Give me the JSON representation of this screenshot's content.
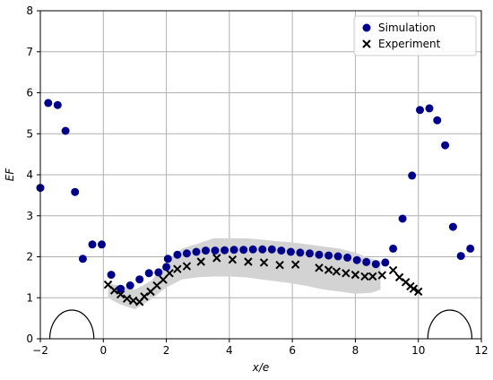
{
  "chart_data": {
    "type": "scatter",
    "xlabel": "x/e",
    "ylabel": "EF",
    "xlim": [
      -2,
      12
    ],
    "ylim": [
      0,
      8
    ],
    "xticks": [
      -2,
      0,
      2,
      4,
      6,
      8,
      10,
      12
    ],
    "yticks": [
      0,
      1,
      2,
      3,
      4,
      5,
      6,
      7,
      8
    ],
    "grid": true,
    "legend_position": "top-right",
    "colors": {
      "simulation": "#00008b",
      "experiment": "#000000",
      "band": "#d3d3d3",
      "grid": "#b0b0b0"
    },
    "series": [
      {
        "name": "Simulation",
        "marker": "circle",
        "points": [
          [
            -2.0,
            3.68
          ],
          [
            -1.75,
            5.75
          ],
          [
            -1.45,
            5.7
          ],
          [
            -1.2,
            5.07
          ],
          [
            -0.9,
            3.58
          ],
          [
            -0.65,
            1.95
          ],
          [
            -0.35,
            2.3
          ],
          [
            -0.05,
            2.3
          ],
          [
            0.25,
            1.56
          ],
          [
            0.55,
            1.22
          ],
          [
            0.85,
            1.3
          ],
          [
            1.15,
            1.45
          ],
          [
            1.45,
            1.6
          ],
          [
            1.75,
            1.62
          ],
          [
            2.0,
            1.75
          ],
          [
            2.05,
            1.95
          ],
          [
            2.35,
            2.05
          ],
          [
            2.65,
            2.08
          ],
          [
            2.95,
            2.12
          ],
          [
            3.25,
            2.15
          ],
          [
            3.55,
            2.15
          ],
          [
            3.85,
            2.16
          ],
          [
            4.15,
            2.17
          ],
          [
            4.45,
            2.17
          ],
          [
            4.75,
            2.18
          ],
          [
            5.05,
            2.18
          ],
          [
            5.35,
            2.18
          ],
          [
            5.65,
            2.15
          ],
          [
            5.95,
            2.12
          ],
          [
            6.25,
            2.1
          ],
          [
            6.55,
            2.08
          ],
          [
            6.85,
            2.05
          ],
          [
            7.15,
            2.03
          ],
          [
            7.45,
            2.01
          ],
          [
            7.75,
            1.98
          ],
          [
            8.05,
            1.92
          ],
          [
            8.35,
            1.87
          ],
          [
            8.65,
            1.82
          ],
          [
            8.95,
            1.86
          ],
          [
            9.2,
            2.2
          ],
          [
            9.5,
            2.93
          ],
          [
            9.8,
            3.98
          ],
          [
            10.05,
            5.58
          ],
          [
            10.35,
            5.62
          ],
          [
            10.6,
            5.33
          ],
          [
            10.85,
            4.72
          ],
          [
            11.1,
            2.73
          ],
          [
            11.35,
            2.02
          ],
          [
            11.65,
            2.2
          ]
        ]
      },
      {
        "name": "Experiment",
        "marker": "x",
        "points": [
          [
            0.15,
            1.32
          ],
          [
            0.35,
            1.18
          ],
          [
            0.55,
            1.08
          ],
          [
            0.75,
            0.98
          ],
          [
            0.95,
            0.93
          ],
          [
            1.15,
            0.9
          ],
          [
            1.3,
            1.03
          ],
          [
            1.5,
            1.15
          ],
          [
            1.7,
            1.3
          ],
          [
            1.9,
            1.44
          ],
          [
            2.1,
            1.6
          ],
          [
            2.35,
            1.7
          ],
          [
            2.65,
            1.77
          ],
          [
            3.1,
            1.88
          ],
          [
            3.6,
            1.97
          ],
          [
            4.1,
            1.93
          ],
          [
            4.6,
            1.88
          ],
          [
            5.1,
            1.86
          ],
          [
            5.6,
            1.8
          ],
          [
            6.1,
            1.81
          ],
          [
            6.85,
            1.73
          ],
          [
            7.15,
            1.68
          ],
          [
            7.4,
            1.64
          ],
          [
            7.7,
            1.6
          ],
          [
            8.0,
            1.56
          ],
          [
            8.3,
            1.52
          ],
          [
            8.55,
            1.52
          ],
          [
            8.85,
            1.55
          ],
          [
            9.2,
            1.67
          ],
          [
            9.4,
            1.5
          ],
          [
            9.6,
            1.38
          ],
          [
            9.75,
            1.28
          ],
          [
            9.85,
            1.22
          ],
          [
            10.0,
            1.15
          ]
        ]
      }
    ],
    "band": {
      "x": [
        0.15,
        0.5,
        1.0,
        1.5,
        2.0,
        2.5,
        3.0,
        3.5,
        4.0,
        4.5,
        5.0,
        5.5,
        6.0,
        6.5,
        7.0,
        7.5,
        8.0,
        8.5,
        8.8
      ],
      "upper": [
        1.35,
        1.3,
        1.2,
        1.4,
        1.85,
        2.2,
        2.32,
        2.45,
        2.45,
        2.45,
        2.42,
        2.38,
        2.35,
        2.3,
        2.25,
        2.2,
        2.1,
        1.95,
        1.9
      ],
      "lower": [
        1.0,
        0.85,
        0.72,
        0.95,
        1.25,
        1.45,
        1.5,
        1.52,
        1.52,
        1.5,
        1.45,
        1.4,
        1.35,
        1.28,
        1.2,
        1.15,
        1.1,
        1.12,
        1.2
      ]
    },
    "shapes": [
      {
        "type": "semicircle",
        "center_x": -1,
        "radius": 0.7
      },
      {
        "type": "semicircle",
        "center_x": 11,
        "radius": 0.7
      }
    ]
  }
}
